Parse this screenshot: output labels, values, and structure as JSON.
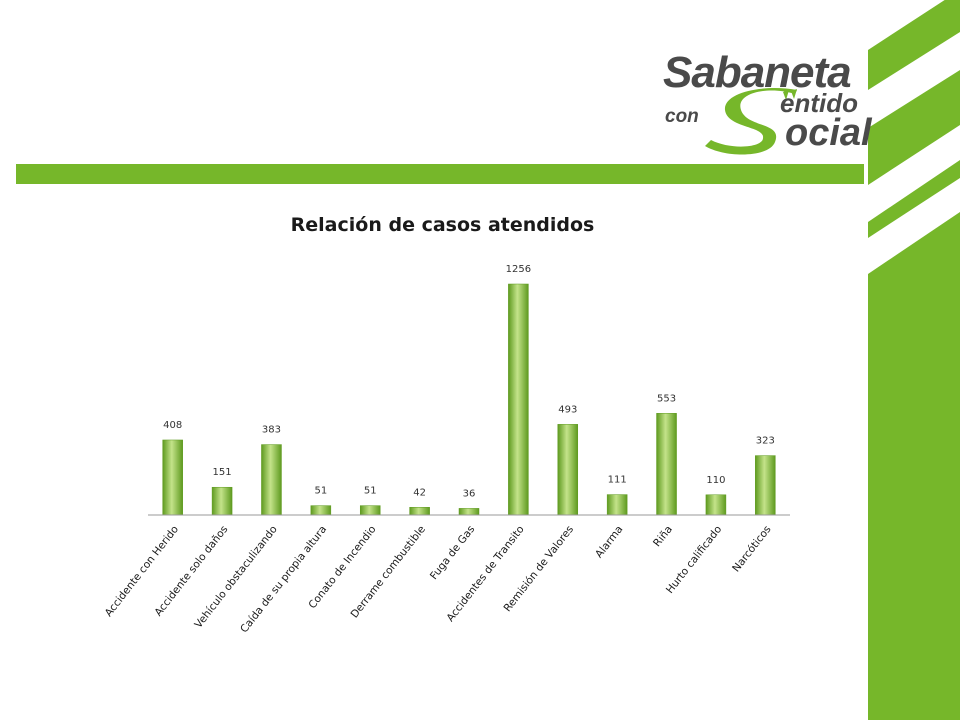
{
  "colors": {
    "brand_green": "#76b72a",
    "bar_light": "#c4e38a",
    "bar_dark": "#5e9a1f",
    "axis": "#999999",
    "logo_gray": "#4a4a4a"
  },
  "logo": {
    "line1": "Sabaneta",
    "line2_con": "con",
    "line2_entido": "entido",
    "line3_ocial": "ocial"
  },
  "chart_data": {
    "type": "bar",
    "title": "Relación de casos atendidos",
    "categories": [
      "Accidente con Herido",
      "Accidente solo daños",
      "Vehículo obstaculizando",
      "Caída de su propia altura",
      "Conato de Incendio",
      "Derrame combustible",
      "Fuga de Gas",
      "Accidentes de Transito",
      "Remisión de Valores",
      "Alarma",
      "Riña",
      "Hurto calificado",
      "Narcóticos"
    ],
    "values": [
      408,
      151,
      383,
      51,
      51,
      42,
      36,
      1256,
      493,
      111,
      553,
      110,
      323
    ],
    "xlabel": "",
    "ylabel": "",
    "ylim": [
      0,
      1256
    ],
    "grid": false,
    "legend": "none",
    "data_labels": true
  }
}
